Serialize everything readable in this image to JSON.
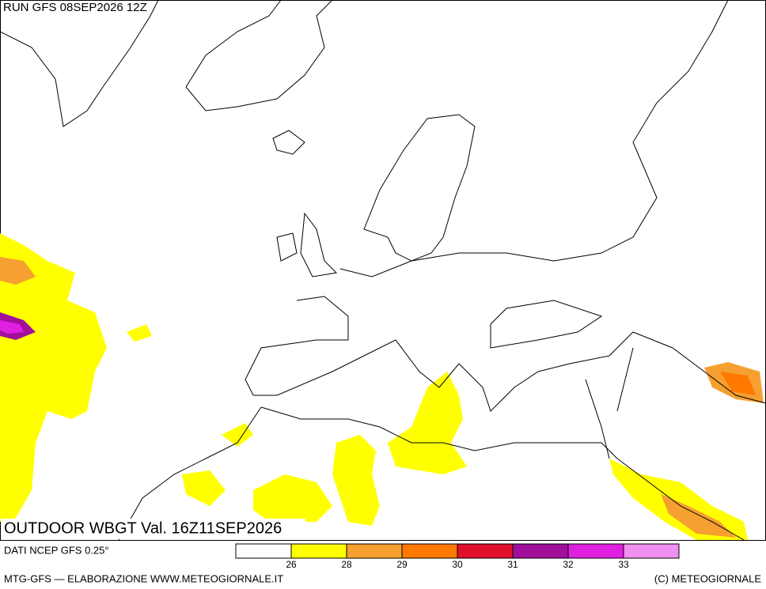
{
  "header": {
    "run": "RUN GFS 08SEP2026 12Z"
  },
  "map": {
    "title": "OUTDOOR WBGT Val. 16Z11SEP2026"
  },
  "footer": {
    "source": "DATI NCEP GFS 0.25°",
    "credit": "MTG-GFS — ELABORAZIONE WWW.METEOGIORNALE.IT",
    "copyright": "(C) METEOGIORNALE"
  },
  "legend": {
    "colors": [
      "#ffffff",
      "#ffff00",
      "#f5a030",
      "#ff7800",
      "#e0102a",
      "#a0109a",
      "#e020e0",
      "#f090f0"
    ],
    "ticks": [
      26,
      28,
      29,
      30,
      31,
      32,
      33
    ]
  }
}
